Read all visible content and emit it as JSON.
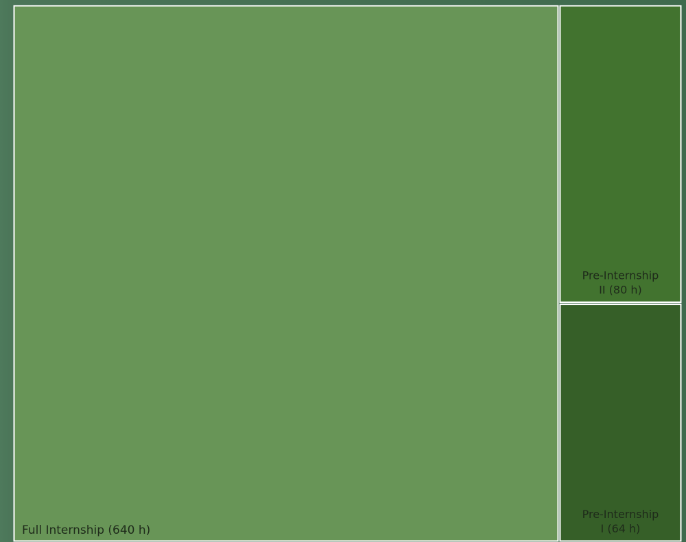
{
  "chart_data": {
    "type": "treemap",
    "title": "",
    "unit": "h",
    "items": [
      {
        "name": "Full Internship",
        "value": 640,
        "label_lines": [
          "Full Internship (640 h)"
        ],
        "color": "#689557"
      },
      {
        "name": "Pre-Internship II",
        "value": 80,
        "label_lines": [
          "Pre-Internship",
          "II (80 h)"
        ],
        "color": "#42732f"
      },
      {
        "name": "Pre-Internship I",
        "value": 64,
        "label_lines": [
          "Pre-Internship",
          "I (64 h)"
        ],
        "color": "#365f28"
      }
    ],
    "border_color": "#ffffff"
  }
}
